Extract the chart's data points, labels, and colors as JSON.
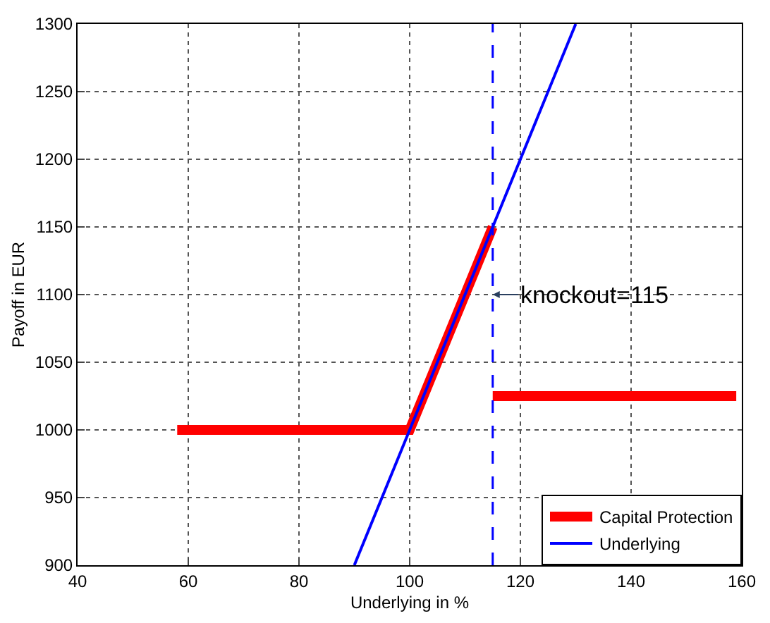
{
  "chart_data": {
    "type": "line",
    "xlabel": "Underlying in %",
    "ylabel": "Payoff in EUR",
    "xlim": [
      40,
      160
    ],
    "xticks": [
      40,
      60,
      80,
      100,
      120,
      140,
      160
    ],
    "ylim": [
      900,
      1300
    ],
    "yticks": [
      900,
      950,
      1000,
      1050,
      1100,
      1150,
      1200,
      1250,
      1300
    ],
    "grid": true,
    "legend": "bottom right",
    "marker": "none",
    "series": [
      {
        "name": "Capital Protection",
        "color": "#ff0000",
        "x": [
          58,
          100,
          115
        ],
        "values": [
          1000,
          1000,
          1150
        ]
      },
      {
        "color": "#ff0000",
        "x": [
          115,
          159
        ],
        "values": [
          1025,
          1025
        ]
      },
      {
        "name": "Underlying",
        "color": "#0000ff",
        "x": [
          90,
          130
        ],
        "values": [
          900,
          1300
        ]
      }
    ],
    "ref_lines": [
      {
        "axis": "x",
        "value": 115,
        "label": null,
        "color": "#0000ff",
        "line_style": "dashed"
      }
    ],
    "annotations": [
      {
        "text": "knockout=115",
        "x": 115,
        "y": 1100
      }
    ]
  }
}
